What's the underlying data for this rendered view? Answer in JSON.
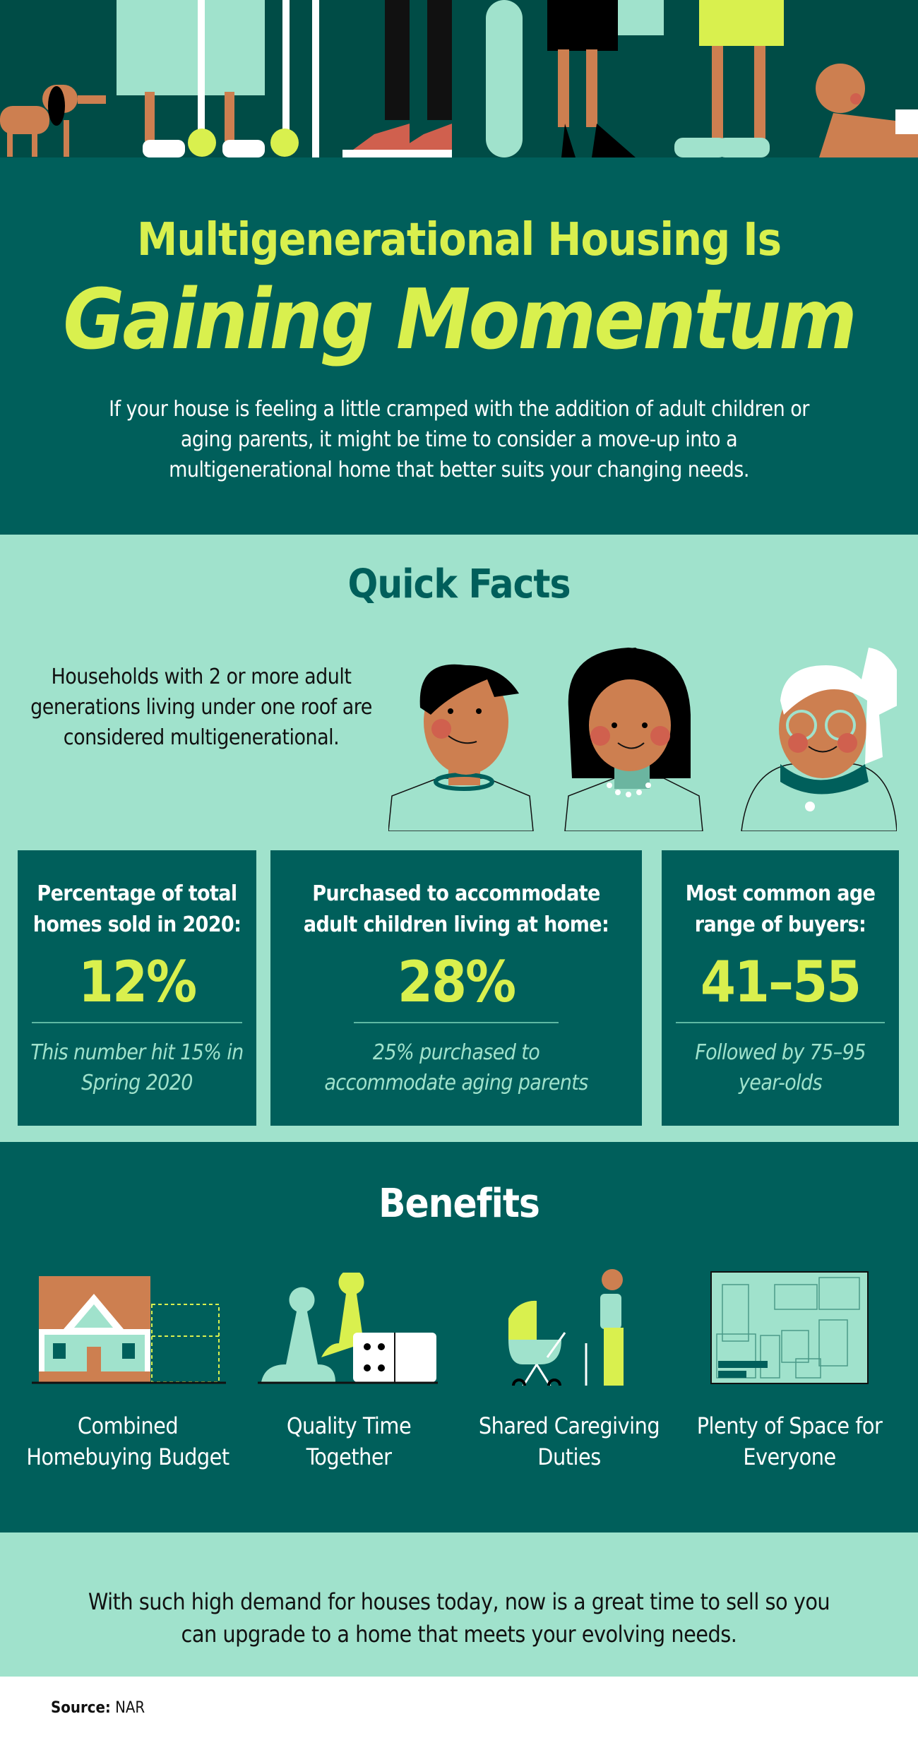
{
  "colors": {
    "dark_teal": "#005f5b",
    "deep_teal": "#004c46",
    "mint": "#a0e2cc",
    "lime": "#d9f04e",
    "skin": "#cd7f50"
  },
  "header": {
    "title_line1": "Multigenerational Housing Is",
    "title_line2": "Gaining Momentum",
    "lead": "If your house is feeling a little cramped with the addition of adult children or aging parents, it might be time to consider a move-up into a multigenerational home that better suits your changing needs."
  },
  "quick_facts": {
    "title": "Quick Facts",
    "definition": "Households with 2 or more adult generations living under one roof are considered multigenerational.",
    "cards": [
      {
        "title": "Percentage of total homes sold in 2020:",
        "value": "12%",
        "note": "This number hit 15% in Spring 2020"
      },
      {
        "title": "Purchased to accommodate adult children living at home:",
        "value": "28%",
        "note": "25% purchased to accommodate aging parents"
      },
      {
        "title": "Most common age range of buyers:",
        "value": "41–55",
        "note": "Followed by 75–95 year-olds"
      }
    ]
  },
  "benefits": {
    "title": "Benefits",
    "items": [
      {
        "label": "Combined Homebuying Budget",
        "icon": "house-icon"
      },
      {
        "label": "Quality Time Together",
        "icon": "board-game-icon"
      },
      {
        "label": "Shared Caregiving Duties",
        "icon": "stroller-grandparent-icon"
      },
      {
        "label": "Plenty of Space for Everyone",
        "icon": "floor-plan-icon"
      }
    ]
  },
  "cta": {
    "text": "With such high demand for houses today, now is a great time to sell so you can upgrade to a home that meets your evolving needs."
  },
  "source": {
    "label": "Source:",
    "value": "NAR"
  }
}
